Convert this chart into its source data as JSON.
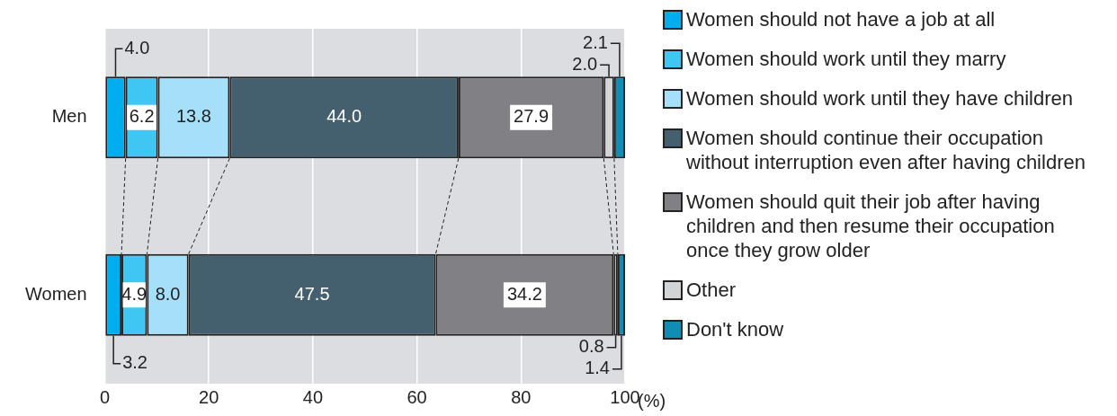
{
  "chart_data": {
    "type": "bar",
    "orientation": "horizontal",
    "stacked": true,
    "categories": [
      "Men",
      "Women"
    ],
    "series": [
      {
        "name": "Women should not have a job at all",
        "color": "#00aeef",
        "values": [
          4.0,
          3.2
        ],
        "value_labels": [
          "4.0",
          "3.2"
        ]
      },
      {
        "name": "Women should work until they marry",
        "color": "#3fc6f2",
        "values": [
          6.2,
          4.9
        ],
        "value_labels": [
          "6.2",
          "4.9"
        ]
      },
      {
        "name": "Women should work until they have children",
        "color": "#a6dff9",
        "values": [
          13.8,
          8.0
        ],
        "value_labels": [
          "13.8",
          "8.0"
        ]
      },
      {
        "name": "Women should continue their occupation without interruption even after having children",
        "color": "#445f6e",
        "values": [
          44.0,
          47.5
        ],
        "value_labels": [
          "44.0",
          "47.5"
        ]
      },
      {
        "name": "Women should quit their job after having children and then resume their occupation once they grow older",
        "color": "#808085",
        "values": [
          27.9,
          34.2
        ],
        "value_labels": [
          "27.9",
          "34.2"
        ]
      },
      {
        "name": "Other",
        "color": "#d3d4d6",
        "values": [
          2.0,
          0.8
        ],
        "value_labels": [
          "2.0",
          "0.8"
        ]
      },
      {
        "name": "Don't know",
        "color": "#0f8db5",
        "values": [
          2.1,
          1.4
        ],
        "value_labels": [
          "2.1",
          "1.4"
        ]
      }
    ],
    "xlabel": "(%)",
    "xlim": [
      0,
      100
    ],
    "xticks": [
      0,
      20,
      40,
      60,
      80,
      100
    ],
    "grid": "x",
    "legend": "right",
    "data_labels": true
  }
}
